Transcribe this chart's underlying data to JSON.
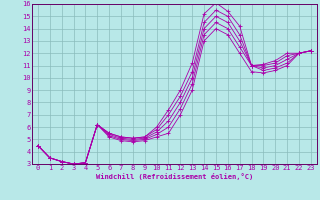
{
  "xlabel": "Windchill (Refroidissement éolien,°C)",
  "bg_color": "#b8e8e8",
  "grid_color": "#8bbcbc",
  "line_color": "#aa00aa",
  "axis_color": "#660066",
  "xlim": [
    -0.5,
    23.5
  ],
  "ylim": [
    3,
    16
  ],
  "xticks": [
    0,
    1,
    2,
    3,
    4,
    5,
    6,
    7,
    8,
    9,
    10,
    11,
    12,
    13,
    14,
    15,
    16,
    17,
    18,
    19,
    20,
    21,
    22,
    23
  ],
  "yticks": [
    3,
    4,
    5,
    6,
    7,
    8,
    9,
    10,
    11,
    12,
    13,
    14,
    15,
    16
  ],
  "series": [
    {
      "x": [
        0,
        1,
        2,
        3,
        4,
        5,
        6,
        7,
        8,
        9,
        10,
        11,
        12,
        13,
        14,
        15,
        16,
        17,
        18,
        19,
        20,
        21,
        22,
        23
      ],
      "y": [
        4.5,
        3.5,
        3.2,
        3.0,
        3.1,
        6.2,
        5.5,
        5.2,
        5.1,
        5.2,
        6.0,
        7.4,
        9.0,
        11.2,
        15.2,
        16.1,
        15.4,
        14.2,
        11.0,
        11.1,
        11.4,
        12.0,
        12.0,
        12.2
      ]
    },
    {
      "x": [
        0,
        1,
        2,
        3,
        4,
        5,
        6,
        7,
        8,
        9,
        10,
        11,
        12,
        13,
        14,
        15,
        16,
        17,
        18,
        19,
        20,
        21,
        22,
        23
      ],
      "y": [
        4.5,
        3.5,
        3.2,
        3.0,
        3.1,
        6.2,
        5.5,
        5.2,
        5.1,
        5.2,
        5.8,
        7.0,
        8.5,
        10.5,
        14.5,
        15.5,
        15.0,
        13.5,
        11.0,
        11.0,
        11.2,
        11.8,
        12.0,
        12.2
      ]
    },
    {
      "x": [
        0,
        1,
        2,
        3,
        4,
        5,
        6,
        7,
        8,
        9,
        10,
        11,
        12,
        13,
        14,
        15,
        16,
        17,
        18,
        19,
        20,
        21,
        22,
        23
      ],
      "y": [
        4.5,
        3.5,
        3.2,
        3.0,
        3.1,
        6.2,
        5.4,
        5.1,
        5.0,
        5.1,
        5.6,
        6.5,
        8.0,
        10.0,
        14.0,
        15.0,
        14.5,
        13.0,
        11.0,
        10.8,
        11.0,
        11.5,
        12.0,
        12.2
      ]
    },
    {
      "x": [
        0,
        1,
        2,
        3,
        4,
        5,
        6,
        7,
        8,
        9,
        10,
        11,
        12,
        13,
        14,
        15,
        16,
        17,
        18,
        19,
        20,
        21,
        22,
        23
      ],
      "y": [
        4.5,
        3.5,
        3.2,
        3.0,
        3.1,
        6.2,
        5.3,
        5.0,
        4.9,
        5.0,
        5.4,
        6.0,
        7.5,
        9.5,
        13.5,
        14.5,
        14.0,
        12.5,
        11.0,
        10.6,
        10.8,
        11.2,
        12.0,
        12.2
      ]
    },
    {
      "x": [
        0,
        1,
        2,
        3,
        4,
        5,
        6,
        7,
        8,
        9,
        10,
        11,
        12,
        13,
        14,
        15,
        16,
        17,
        18,
        19,
        20,
        21,
        22,
        23
      ],
      "y": [
        4.5,
        3.5,
        3.2,
        3.0,
        3.1,
        6.2,
        5.2,
        4.9,
        4.8,
        4.9,
        5.2,
        5.5,
        7.0,
        9.0,
        13.0,
        14.0,
        13.5,
        12.0,
        10.5,
        10.4,
        10.6,
        11.0,
        12.0,
        12.2
      ]
    }
  ]
}
